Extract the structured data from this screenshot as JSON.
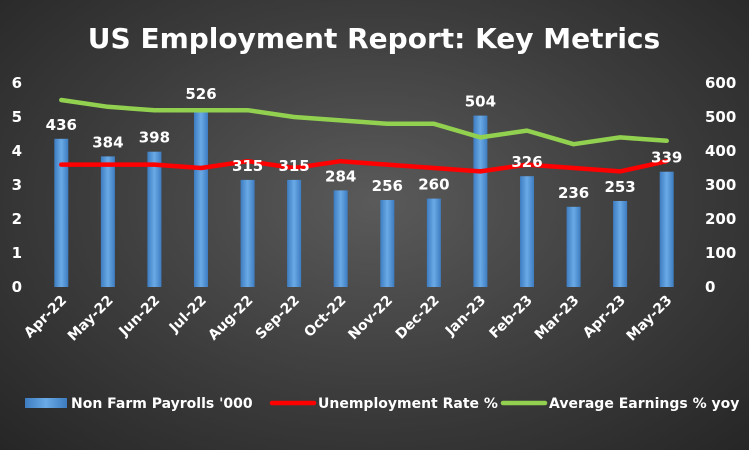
{
  "chart_data": {
    "type": "bar",
    "title": "US Employment Report: Key Metrics",
    "categories": [
      "Apr-22",
      "May-22",
      "Jun-22",
      "Jul-22",
      "Aug-22",
      "Sep-22",
      "Oct-22",
      "Nov-22",
      "Dec-22",
      "Jan-23",
      "Feb-23",
      "Mar-23",
      "Apr-23",
      "May-23"
    ],
    "series": [
      {
        "name": "Non Farm Payrolls '000",
        "type": "bar",
        "axis": "right",
        "color": "#5b9bd5",
        "values": [
          436,
          384,
          398,
          526,
          315,
          315,
          284,
          256,
          260,
          504,
          326,
          236,
          253,
          339
        ]
      },
      {
        "name": "Unemployment Rate %",
        "type": "line",
        "axis": "left",
        "color": "#ff0000",
        "values": [
          3.6,
          3.6,
          3.6,
          3.5,
          3.7,
          3.5,
          3.7,
          3.6,
          3.5,
          3.4,
          3.6,
          3.5,
          3.4,
          3.7
        ]
      },
      {
        "name": "Average Earnings % yoy",
        "type": "line",
        "axis": "left",
        "color": "#92d050",
        "values": [
          5.5,
          5.3,
          5.2,
          5.2,
          5.2,
          5.0,
          4.9,
          4.8,
          4.8,
          4.4,
          4.6,
          4.2,
          4.4,
          4.3
        ]
      }
    ],
    "yleft": {
      "min": 0,
      "max": 6,
      "ticks": [
        0,
        1,
        2,
        3,
        4,
        5,
        6
      ]
    },
    "yright": {
      "min": 0,
      "max": 600,
      "ticks": [
        0,
        100,
        200,
        300,
        400,
        500,
        600
      ]
    },
    "grid": false,
    "legend_position": "bottom",
    "text_color": "#ffffff"
  }
}
